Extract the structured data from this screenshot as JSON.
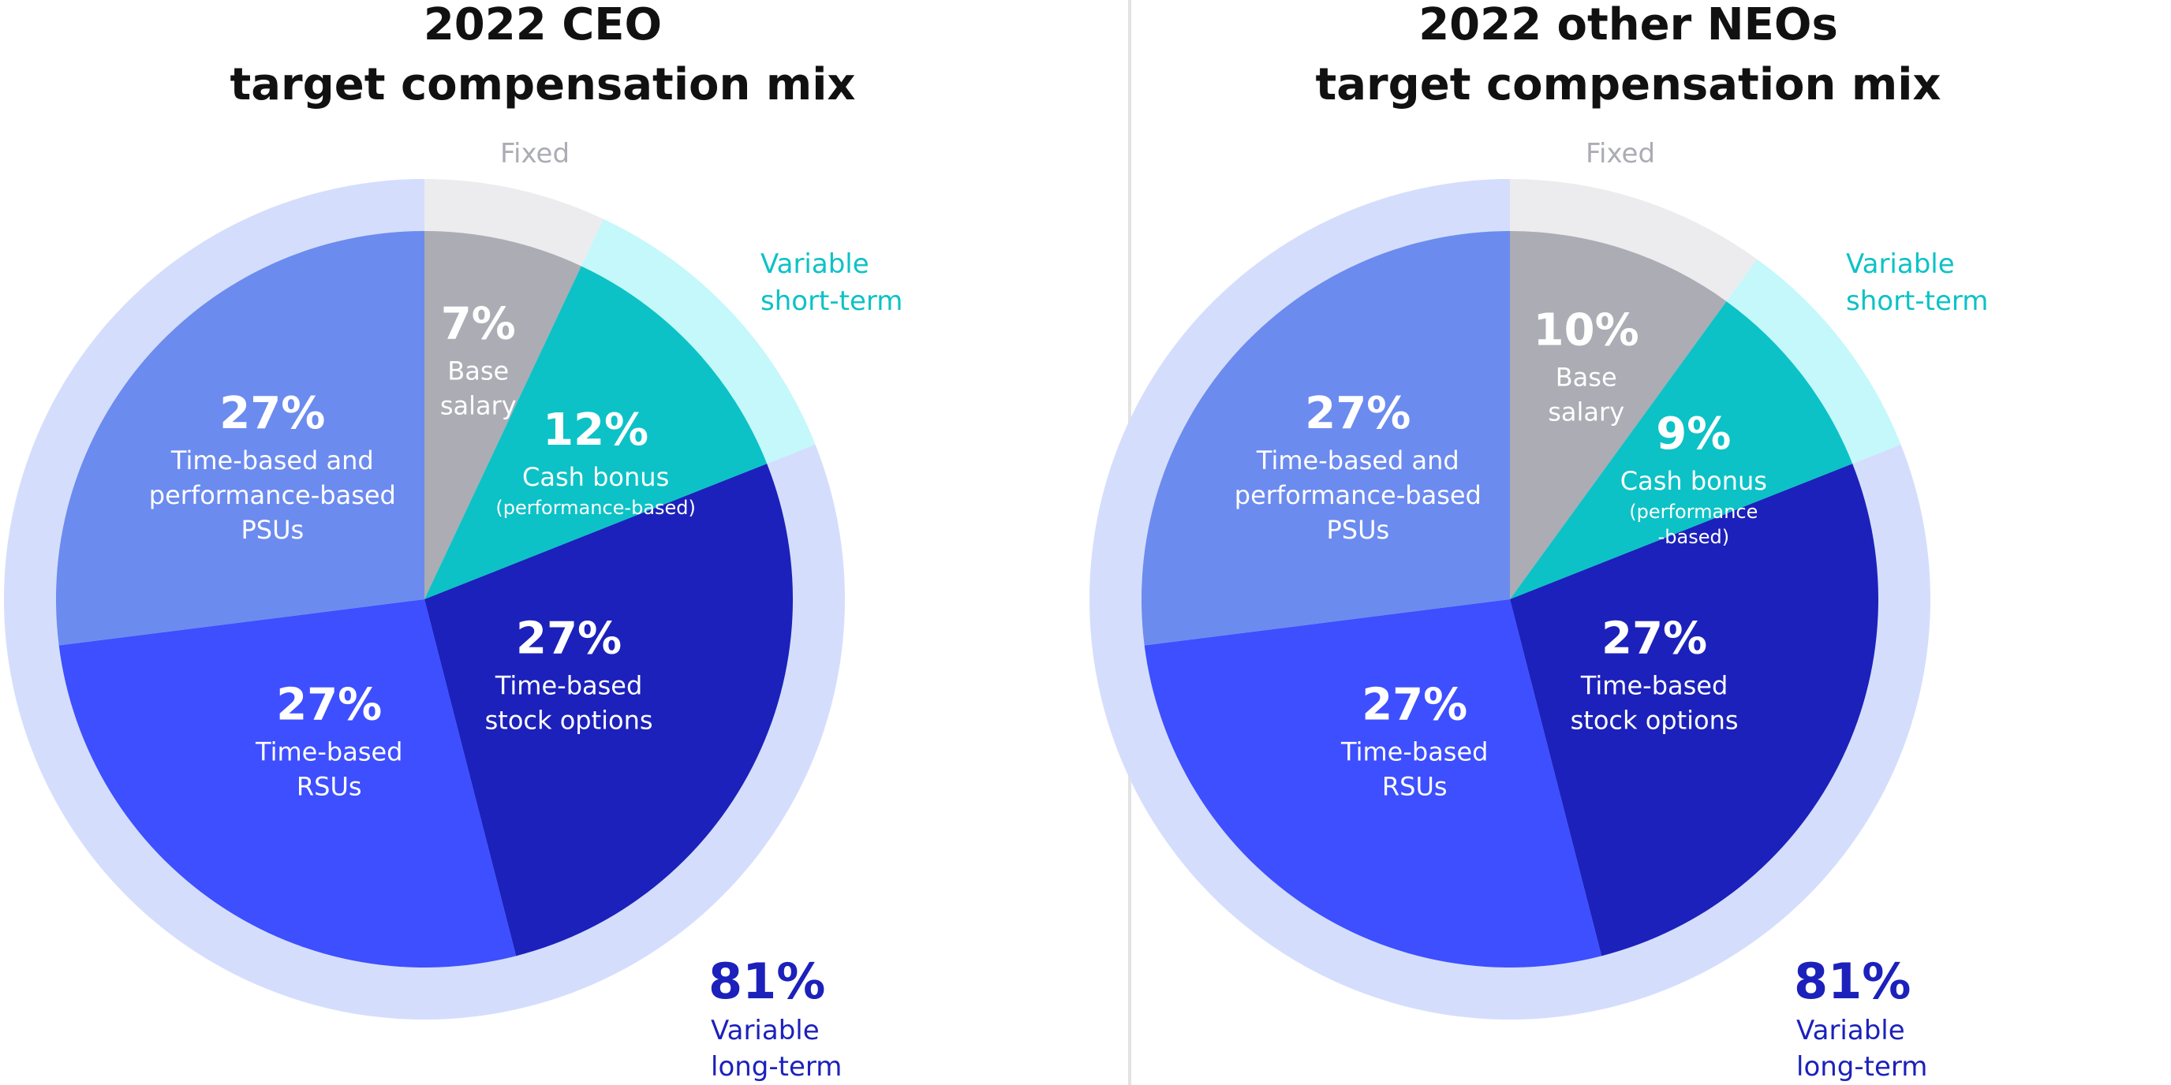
{
  "charts": [
    {
      "title_line1": "2022 CEO",
      "title_line2": "target compensation mix",
      "ring": {
        "fixed_label": "Fixed",
        "variable_short_label_line1": "Variable",
        "variable_short_label_line2": "short-term",
        "variable_long_value": "81%",
        "variable_long_label_line1": "Variable",
        "variable_long_label_line2": "long-term"
      }
    },
    {
      "title_line1": "2022 other NEOs",
      "title_line2": "target compensation mix",
      "ring": {
        "fixed_label": "Fixed",
        "variable_short_label_line1": "Variable",
        "variable_short_label_line2": "short-term",
        "variable_long_value": "81%",
        "variable_long_label_line1": "Variable",
        "variable_long_label_line2": "long-term"
      }
    }
  ],
  "colors": {
    "base_salary": "#abacb4",
    "cash_bonus": "#0cc2c6",
    "stock_options": "#1c21bb",
    "rsus": "#3d4ffe",
    "psus": "#6c8bef",
    "ring_fixed": "#ececee",
    "ring_short": "#c4f8fb",
    "ring_long": "#d4defc",
    "fixed_text": "#abacb4",
    "short_text": "#0cc2c6",
    "long_text": "#1c21bb"
  },
  "chart_data": [
    {
      "type": "pie",
      "title": "2022 CEO target compensation mix",
      "slices": [
        {
          "pct": "7%",
          "value": 7,
          "lines": [
            "Base",
            "salary"
          ],
          "color": "base_salary"
        },
        {
          "pct": "12%",
          "value": 12,
          "lines": [
            "Cash bonus"
          ],
          "small_lines": [
            "(performance-based)"
          ],
          "color": "cash_bonus"
        },
        {
          "pct": "27%",
          "value": 27,
          "lines": [
            "Time-based",
            "stock options"
          ],
          "color": "stock_options"
        },
        {
          "pct": "27%",
          "value": 27,
          "lines": [
            "Time-based",
            "RSUs"
          ],
          "color": "rsus"
        },
        {
          "pct": "27%",
          "value": 27,
          "lines": [
            "Time-based and",
            "performance-based",
            "PSUs"
          ],
          "color": "psus"
        }
      ],
      "ring": [
        {
          "name": "Fixed",
          "value": 7
        },
        {
          "name": "Variable short-term",
          "value": 12
        },
        {
          "name": "Variable long-term",
          "value": 81
        }
      ]
    },
    {
      "type": "pie",
      "title": "2022 other NEOs target compensation mix",
      "slices": [
        {
          "pct": "10%",
          "value": 10,
          "lines": [
            "Base",
            "salary"
          ],
          "color": "base_salary"
        },
        {
          "pct": "9%",
          "value": 9,
          "lines": [
            "Cash bonus"
          ],
          "small_lines": [
            "(performance",
            "-based)"
          ],
          "color": "cash_bonus"
        },
        {
          "pct": "27%",
          "value": 27,
          "lines": [
            "Time-based",
            "stock options"
          ],
          "color": "stock_options"
        },
        {
          "pct": "27%",
          "value": 27,
          "lines": [
            "Time-based",
            "RSUs"
          ],
          "color": "rsus"
        },
        {
          "pct": "27%",
          "value": 27,
          "lines": [
            "Time-based and",
            "performance-based",
            "PSUs"
          ],
          "color": "psus"
        }
      ],
      "ring": [
        {
          "name": "Fixed",
          "value": 10
        },
        {
          "name": "Variable short-term",
          "value": 9
        },
        {
          "name": "Variable long-term",
          "value": 81
        }
      ]
    }
  ]
}
